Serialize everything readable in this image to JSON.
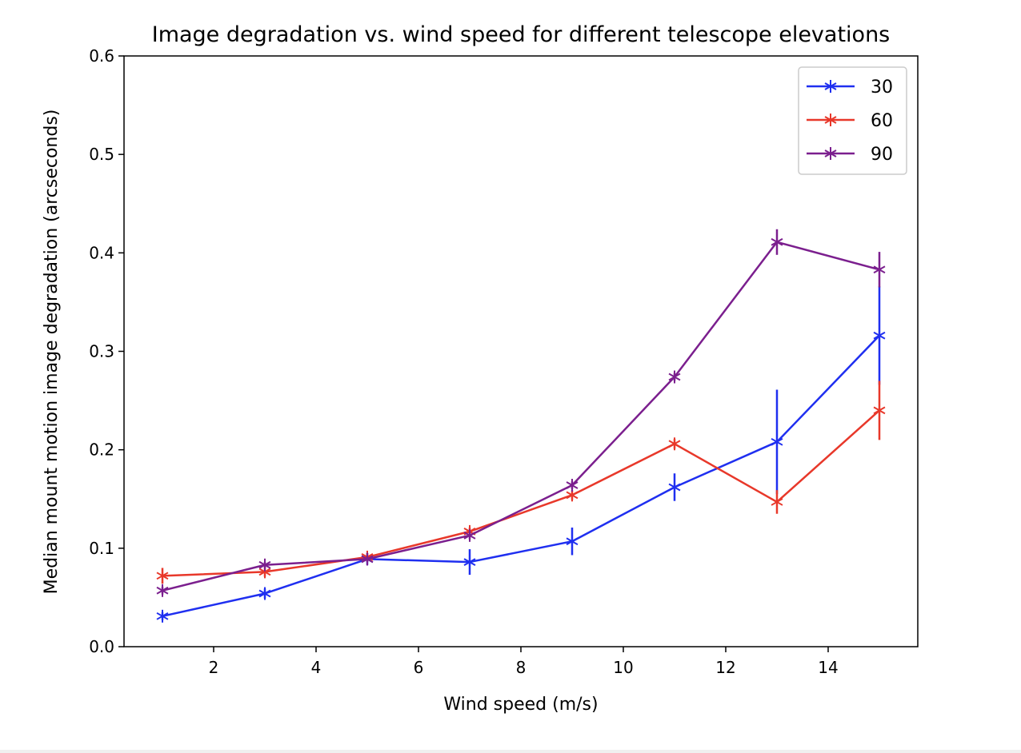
{
  "chart_data": {
    "type": "line",
    "title": "Image degradation vs. wind speed for different telescope elevations",
    "xlabel": "Wind speed (m/s)",
    "ylabel": "Median mount motion image degradation (arcseconds)",
    "xlim": [
      0.25,
      15.75
    ],
    "ylim": [
      0.0,
      0.6
    ],
    "xticks": [
      2,
      4,
      6,
      8,
      10,
      12,
      14
    ],
    "yticks": [
      0.0,
      0.1,
      0.2,
      0.3,
      0.4,
      0.5,
      0.6
    ],
    "ytick_labels": [
      "0.0",
      "0.1",
      "0.2",
      "0.3",
      "0.4",
      "0.5",
      "0.6"
    ],
    "grid": false,
    "legend_position": "top-right",
    "x": [
      1,
      3,
      5,
      7,
      9,
      11,
      13,
      15
    ],
    "series": [
      {
        "name": "30",
        "color": "#1f2ff0",
        "values": [
          0.031,
          0.054,
          0.089,
          0.086,
          0.107,
          0.162,
          0.208,
          0.316
        ],
        "errors": [
          0.004,
          0.005,
          0.006,
          0.013,
          0.014,
          0.014,
          0.053,
          0.05
        ]
      },
      {
        "name": "60",
        "color": "#e8382a",
        "values": [
          0.072,
          0.076,
          0.091,
          0.117,
          0.154,
          0.206,
          0.147,
          0.24
        ],
        "errors": [
          0.008,
          0.005,
          0.004,
          0.004,
          0.005,
          0.005,
          0.012,
          0.03
        ]
      },
      {
        "name": "90",
        "color": "#7b1f8e",
        "values": [
          0.057,
          0.083,
          0.089,
          0.113,
          0.164,
          0.274,
          0.411,
          0.383
        ],
        "errors": [
          0.004,
          0.003,
          0.003,
          0.004,
          0.004,
          0.004,
          0.013,
          0.018
        ]
      }
    ]
  }
}
